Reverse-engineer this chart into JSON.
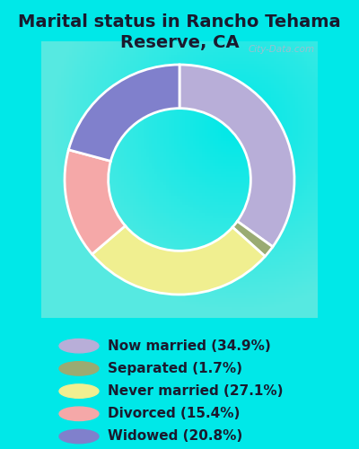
{
  "title": "Marital status in Rancho Tehama\nReserve, CA",
  "values": [
    34.9,
    1.7,
    27.1,
    15.4,
    20.8
  ],
  "colors": [
    "#b8aed8",
    "#9aab72",
    "#f0ef90",
    "#f5a8a8",
    "#8080cc"
  ],
  "legend_labels": [
    "Now married (34.9%)",
    "Separated (1.7%)",
    "Never married (27.1%)",
    "Divorced (15.4%)",
    "Widowed (20.8%)"
  ],
  "bg_outer": "#00e8e8",
  "bg_chart_color": "#d8ead8",
  "title_fontsize": 14,
  "legend_fontsize": 11,
  "figsize": [
    4.0,
    5.0
  ],
  "dpi": 100,
  "watermark": "City-Data.com",
  "start_angle": 90
}
